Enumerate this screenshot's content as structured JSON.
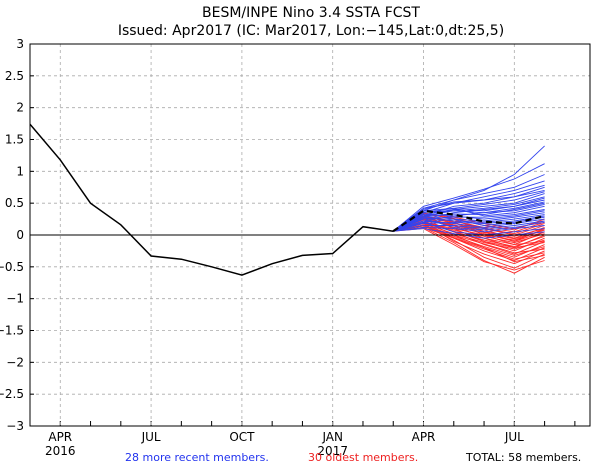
{
  "chart_data": {
    "type": "line",
    "title": "BESM/INPE Nino 3.4 SSTA FCST",
    "subtitle": "Issued: Apr2017 (IC: Mar2017, Lon:−145,Lat:0,dt:25,5)",
    "xlabel": "",
    "ylabel": "",
    "ylim": [
      -3,
      3
    ],
    "yticks": [
      "3",
      "2.5",
      "2",
      "1.5",
      "1",
      "0.5",
      "0",
      "−0.5",
      "−1",
      "−1.5",
      "−2",
      "−2.5",
      "−3"
    ],
    "ytick_values": [
      3,
      2.5,
      2,
      1.5,
      1,
      0.5,
      0,
      -0.5,
      -1,
      -1.5,
      -2,
      -2.5,
      -3
    ],
    "xlim": [
      0,
      18.5
    ],
    "xticks": [
      {
        "label": "APR",
        "sub": "2016",
        "x": 1
      },
      {
        "label": "JUL",
        "sub": "",
        "x": 4
      },
      {
        "label": "OCT",
        "sub": "",
        "x": 7
      },
      {
        "label": "JAN",
        "sub": "2017",
        "x": 10
      },
      {
        "label": "APR",
        "sub": "",
        "x": 13
      },
      {
        "label": "JUL",
        "sub": "",
        "x": 16
      }
    ],
    "grid": true,
    "observed": {
      "name": "Observed",
      "color": "#000000",
      "x": [
        0,
        1,
        2,
        3,
        4,
        5,
        6,
        7,
        8,
        9,
        10,
        11,
        12
      ],
      "values": [
        1.74,
        1.18,
        0.5,
        0.16,
        -0.33,
        -0.38,
        -0.5,
        -0.63,
        -0.45,
        -0.32,
        -0.29,
        0.13,
        0.06
      ]
    },
    "forecast_x": [
      12,
      13,
      14,
      15,
      16,
      17
    ],
    "ensemble_mean": {
      "name": "Ensemble mean",
      "color": "#000000",
      "dashed": true,
      "values": [
        0.06,
        0.38,
        0.32,
        0.21,
        0.18,
        0.3
      ]
    },
    "recent_members": {
      "name": "28 more recent members.",
      "color": "#3344ee",
      "series": [
        [
          0.06,
          0.42,
          0.55,
          0.7,
          0.95,
          1.4
        ],
        [
          0.06,
          0.45,
          0.58,
          0.72,
          0.88,
          1.12
        ],
        [
          0.06,
          0.38,
          0.55,
          0.65,
          0.75,
          0.95
        ],
        [
          0.06,
          0.35,
          0.5,
          0.6,
          0.7,
          0.85
        ],
        [
          0.06,
          0.4,
          0.52,
          0.55,
          0.65,
          0.78
        ],
        [
          0.06,
          0.3,
          0.45,
          0.5,
          0.6,
          0.75
        ],
        [
          0.06,
          0.42,
          0.5,
          0.55,
          0.6,
          0.7
        ],
        [
          0.06,
          0.35,
          0.42,
          0.48,
          0.55,
          0.68
        ],
        [
          0.06,
          0.28,
          0.4,
          0.45,
          0.5,
          0.65
        ],
        [
          0.06,
          0.3,
          0.38,
          0.42,
          0.48,
          0.6
        ],
        [
          0.06,
          0.32,
          0.4,
          0.38,
          0.45,
          0.58
        ],
        [
          0.06,
          0.25,
          0.35,
          0.4,
          0.45,
          0.55
        ],
        [
          0.06,
          0.36,
          0.38,
          0.35,
          0.42,
          0.52
        ],
        [
          0.06,
          0.3,
          0.33,
          0.32,
          0.4,
          0.5
        ],
        [
          0.06,
          0.22,
          0.3,
          0.35,
          0.38,
          0.48
        ],
        [
          0.06,
          0.38,
          0.42,
          0.3,
          0.35,
          0.45
        ],
        [
          0.06,
          0.25,
          0.28,
          0.28,
          0.32,
          0.4
        ],
        [
          0.06,
          0.33,
          0.3,
          0.25,
          0.3,
          0.38
        ],
        [
          0.06,
          0.2,
          0.25,
          0.22,
          0.28,
          0.35
        ],
        [
          0.06,
          0.28,
          0.22,
          0.2,
          0.25,
          0.32
        ],
        [
          0.06,
          0.18,
          0.2,
          0.18,
          0.22,
          0.3
        ],
        [
          0.06,
          0.3,
          0.25,
          0.15,
          0.2,
          0.28
        ],
        [
          0.06,
          0.22,
          0.18,
          0.12,
          0.18,
          0.25
        ],
        [
          0.06,
          0.15,
          0.15,
          0.1,
          0.15,
          0.22
        ],
        [
          0.06,
          0.26,
          0.12,
          0.08,
          0.12,
          0.2
        ],
        [
          0.06,
          0.12,
          0.1,
          0.05,
          0.1,
          0.15
        ],
        [
          0.06,
          0.2,
          0.05,
          0.0,
          0.05,
          0.1
        ],
        [
          0.06,
          0.1,
          0.02,
          -0.05,
          0.0,
          0.05
        ]
      ]
    },
    "oldest_members": {
      "name": "30 oldest members.",
      "color": "#ff2a2a",
      "series": [
        [
          0.06,
          0.35,
          0.25,
          0.05,
          -0.1,
          0.1
        ],
        [
          0.06,
          0.3,
          0.2,
          0.0,
          -0.15,
          0.05
        ],
        [
          0.06,
          0.28,
          0.15,
          -0.05,
          -0.2,
          0.0
        ],
        [
          0.06,
          0.32,
          0.1,
          -0.1,
          -0.25,
          -0.05
        ],
        [
          0.06,
          0.25,
          0.05,
          -0.15,
          -0.3,
          -0.1
        ],
        [
          0.06,
          0.22,
          0.0,
          -0.2,
          -0.35,
          -0.15
        ],
        [
          0.06,
          0.2,
          -0.05,
          -0.25,
          -0.4,
          -0.2
        ],
        [
          0.06,
          0.18,
          -0.1,
          -0.3,
          -0.45,
          -0.25
        ],
        [
          0.06,
          0.15,
          -0.08,
          -0.35,
          -0.52,
          -0.3
        ],
        [
          0.06,
          0.12,
          -0.12,
          -0.4,
          -0.6,
          -0.35
        ],
        [
          0.06,
          0.1,
          -0.15,
          -0.42,
          -0.55,
          -0.4
        ],
        [
          0.06,
          0.3,
          0.18,
          0.1,
          0.0,
          0.15
        ],
        [
          0.06,
          0.28,
          0.22,
          0.12,
          0.05,
          0.2
        ],
        [
          0.06,
          0.25,
          0.15,
          0.08,
          -0.05,
          0.12
        ],
        [
          0.06,
          0.2,
          0.1,
          0.0,
          -0.08,
          0.08
        ],
        [
          0.06,
          0.33,
          0.26,
          0.15,
          0.08,
          0.25
        ],
        [
          0.06,
          0.18,
          0.02,
          -0.12,
          -0.22,
          -0.08
        ],
        [
          0.06,
          0.22,
          0.05,
          -0.08,
          -0.18,
          -0.02
        ],
        [
          0.06,
          0.15,
          -0.02,
          -0.18,
          -0.32,
          -0.18
        ],
        [
          0.06,
          0.26,
          0.12,
          -0.02,
          -0.12,
          0.02
        ],
        [
          0.06,
          0.3,
          0.2,
          0.05,
          -0.02,
          0.1
        ],
        [
          0.06,
          0.12,
          -0.05,
          -0.22,
          -0.38,
          -0.28
        ],
        [
          0.06,
          0.34,
          0.28,
          0.18,
          0.1,
          0.22
        ],
        [
          0.06,
          0.2,
          0.08,
          -0.05,
          -0.15,
          -0.1
        ],
        [
          0.06,
          0.24,
          0.14,
          0.02,
          -0.1,
          0.05
        ],
        [
          0.06,
          0.16,
          0.0,
          -0.14,
          -0.28,
          -0.22
        ],
        [
          0.06,
          0.27,
          0.16,
          0.04,
          -0.06,
          0.08
        ],
        [
          0.06,
          0.14,
          -0.04,
          -0.2,
          -0.42,
          -0.32
        ],
        [
          0.06,
          0.29,
          0.22,
          0.1,
          0.02,
          0.18
        ],
        [
          0.06,
          0.19,
          0.06,
          -0.1,
          -0.2,
          -0.12
        ]
      ]
    },
    "legend": {
      "recent": "28 more recent members.",
      "oldest": "30 oldest members.",
      "total": "TOTAL: 58 members."
    }
  }
}
